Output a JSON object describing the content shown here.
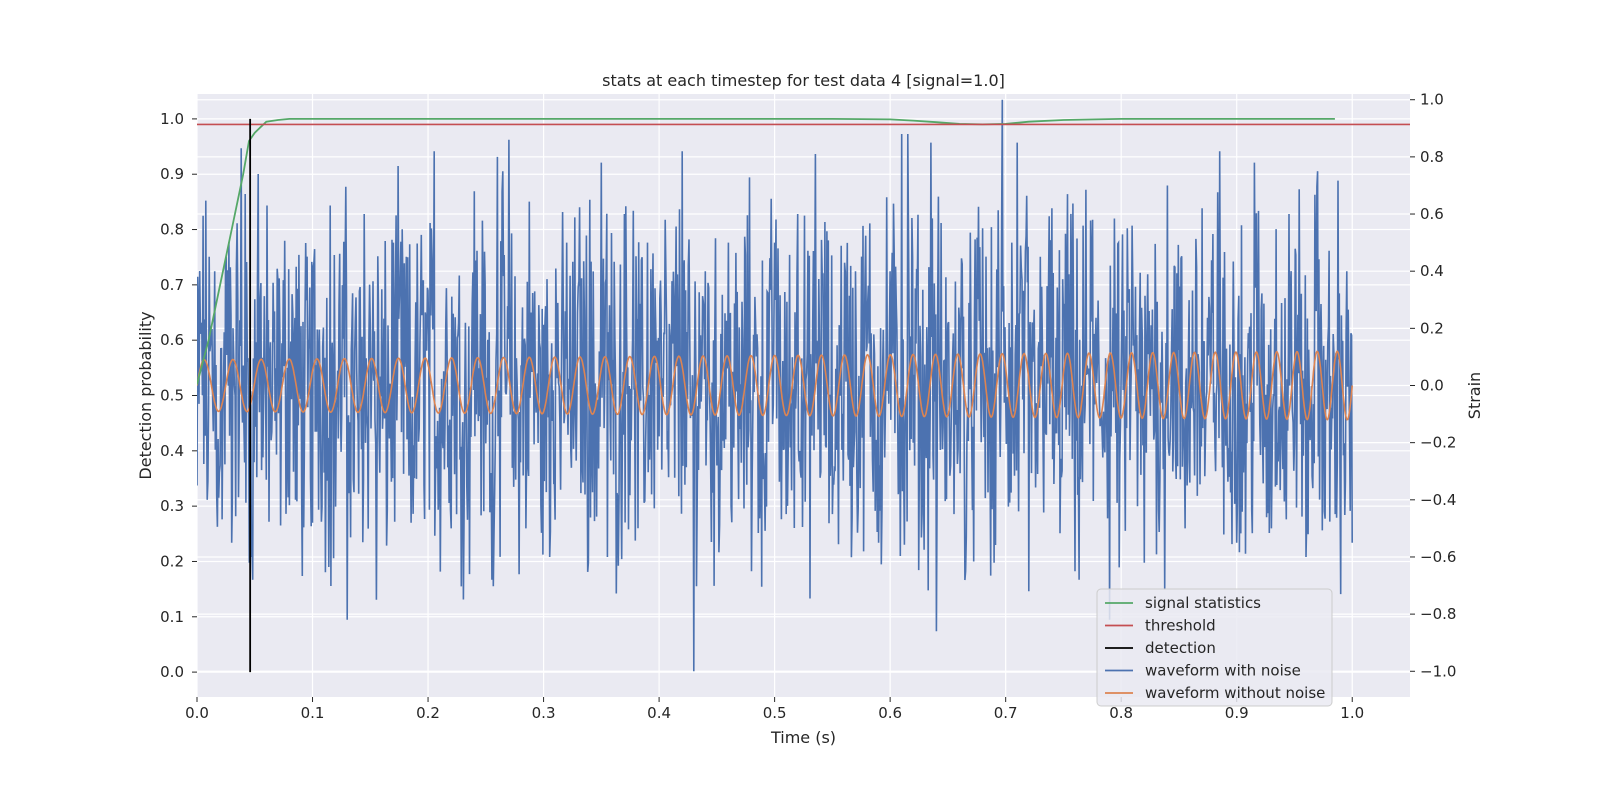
{
  "chart_data": {
    "type": "line",
    "title": "stats at each timestep for test data 4 [signal=1.0]",
    "xlabel": "Time (s)",
    "ylabel": "Detection probability",
    "y2label": "Strain",
    "xlim": [
      0.0,
      1.05
    ],
    "ylim": [
      -0.045,
      1.045
    ],
    "y2lim": [
      -1.09,
      1.02
    ],
    "grid": true,
    "legend_position": "lower-right",
    "xticks": [
      "0.0",
      "0.1",
      "0.2",
      "0.3",
      "0.4",
      "0.5",
      "0.6",
      "0.7",
      "0.8",
      "0.9",
      "1.0"
    ],
    "yticks": [
      "0.0",
      "0.1",
      "0.2",
      "0.3",
      "0.4",
      "0.5",
      "0.6",
      "0.7",
      "0.8",
      "0.9",
      "1.0"
    ],
    "y2ticks": [
      "−1.0",
      "−0.8",
      "−0.6",
      "−0.4",
      "−0.2",
      "0.0",
      "0.2",
      "0.4",
      "0.6",
      "0.8",
      "1.0"
    ],
    "colors": {
      "background": "#eaeaf2",
      "grid": "#ffffff",
      "signal_statistics": "#55a868",
      "threshold": "#c44e52",
      "detection": "#000000",
      "waveform_with_noise": "#4c72b0",
      "waveform_without_noise": "#dd8452"
    },
    "series": [
      {
        "name": "signal statistics",
        "axis": "left",
        "x": [
          0.0,
          0.01,
          0.02,
          0.03,
          0.04,
          0.045,
          0.05,
          0.055,
          0.06,
          0.07,
          0.08,
          0.1,
          0.2,
          0.3,
          0.4,
          0.5,
          0.55,
          0.6,
          0.62,
          0.64,
          0.66,
          0.68,
          0.7,
          0.72,
          0.75,
          0.8,
          0.9,
          0.985
        ],
        "y": [
          0.52,
          0.6,
          0.7,
          0.8,
          0.9,
          0.96,
          0.975,
          0.985,
          0.995,
          0.998,
          1.0,
          1.0,
          1.0,
          1.0,
          1.0,
          1.0,
          1.0,
          0.999,
          0.997,
          0.994,
          0.991,
          0.99,
          0.991,
          0.995,
          0.998,
          1.0,
          1.0,
          1.0
        ]
      },
      {
        "name": "threshold",
        "axis": "left",
        "x": [
          0.0,
          1.05
        ],
        "y": [
          0.99,
          0.99
        ]
      },
      {
        "name": "detection",
        "axis": "left",
        "x": [
          0.046,
          0.046
        ],
        "y": [
          0.0,
          1.0
        ]
      },
      {
        "name": "waveform with noise",
        "axis": "right",
        "note_peaks": [
          {
            "x": 0.0,
            "y": -0.35
          },
          {
            "x": 0.004,
            "y": 0.22
          },
          {
            "x": 0.009,
            "y": -0.4
          },
          {
            "x": 0.015,
            "y": 0.4
          },
          {
            "x": 0.02,
            "y": -0.28
          },
          {
            "x": 0.025,
            "y": 0.45
          },
          {
            "x": 0.03,
            "y": -0.55
          },
          {
            "x": 0.035,
            "y": 0.3
          },
          {
            "x": 0.038,
            "y": 0.83
          },
          {
            "x": 0.042,
            "y": 0.67
          },
          {
            "x": 0.045,
            "y": -0.62
          },
          {
            "x": 0.048,
            "y": -0.68
          },
          {
            "x": 0.053,
            "y": 0.74
          },
          {
            "x": 0.06,
            "y": -0.33
          },
          {
            "x": 0.07,
            "y": 0.37
          },
          {
            "x": 0.085,
            "y": -0.4
          },
          {
            "x": 0.1,
            "y": -0.48
          },
          {
            "x": 0.115,
            "y": 0.63
          },
          {
            "x": 0.13,
            "y": -0.82
          },
          {
            "x": 0.145,
            "y": 0.6
          },
          {
            "x": 0.155,
            "y": -0.75
          },
          {
            "x": 0.17,
            "y": 0.5
          },
          {
            "x": 0.185,
            "y": -0.48
          },
          {
            "x": 0.205,
            "y": 0.82
          },
          {
            "x": 0.22,
            "y": -0.5
          },
          {
            "x": 0.24,
            "y": 0.68
          },
          {
            "x": 0.255,
            "y": -0.68
          },
          {
            "x": 0.26,
            "y": 0.8
          },
          {
            "x": 0.27,
            "y": 0.86
          },
          {
            "x": 0.285,
            "y": -0.5
          },
          {
            "x": 0.305,
            "y": -0.6
          },
          {
            "x": 0.32,
            "y": 0.5
          },
          {
            "x": 0.34,
            "y": 0.65
          },
          {
            "x": 0.35,
            "y": 0.78
          },
          {
            "x": 0.355,
            "y": -0.6
          },
          {
            "x": 0.37,
            "y": 0.6
          },
          {
            "x": 0.39,
            "y": 0.5
          },
          {
            "x": 0.405,
            "y": 0.58
          },
          {
            "x": 0.42,
            "y": 0.82
          },
          {
            "x": 0.43,
            "y": -1.0
          },
          {
            "x": 0.44,
            "y": 0.4
          },
          {
            "x": 0.46,
            "y": 0.5
          },
          {
            "x": 0.48,
            "y": -0.65
          },
          {
            "x": 0.5,
            "y": 0.5
          },
          {
            "x": 0.52,
            "y": 0.6
          },
          {
            "x": 0.535,
            "y": 0.81
          },
          {
            "x": 0.55,
            "y": -0.45
          },
          {
            "x": 0.57,
            "y": 0.4
          },
          {
            "x": 0.59,
            "y": -0.55
          },
          {
            "x": 0.6,
            "y": 0.4
          },
          {
            "x": 0.61,
            "y": 0.88
          },
          {
            "x": 0.615,
            "y": 0.88
          },
          {
            "x": 0.62,
            "y": -0.2
          },
          {
            "x": 0.635,
            "y": 0.85
          },
          {
            "x": 0.64,
            "y": -0.86
          },
          {
            "x": 0.655,
            "y": -0.45
          },
          {
            "x": 0.665,
            "y": -0.65
          },
          {
            "x": 0.68,
            "y": 0.55
          },
          {
            "x": 0.69,
            "y": -0.62
          },
          {
            "x": 0.697,
            "y": 1.0
          },
          {
            "x": 0.705,
            "y": 0.5
          },
          {
            "x": 0.71,
            "y": 0.85
          },
          {
            "x": 0.72,
            "y": -0.72
          },
          {
            "x": 0.74,
            "y": 0.62
          },
          {
            "x": 0.76,
            "y": -0.65
          },
          {
            "x": 0.775,
            "y": 0.58
          },
          {
            "x": 0.79,
            "y": -0.82
          },
          {
            "x": 0.805,
            "y": 0.55
          },
          {
            "x": 0.82,
            "y": -0.62
          },
          {
            "x": 0.84,
            "y": 0.7
          },
          {
            "x": 0.855,
            "y": -0.5
          },
          {
            "x": 0.87,
            "y": 0.62
          },
          {
            "x": 0.885,
            "y": 0.82
          },
          {
            "x": 0.9,
            "y": -0.55
          },
          {
            "x": 0.915,
            "y": 0.78
          },
          {
            "x": 0.93,
            "y": -0.5
          },
          {
            "x": 0.945,
            "y": 0.6
          },
          {
            "x": 0.96,
            "y": -0.6
          },
          {
            "x": 0.97,
            "y": 0.75
          },
          {
            "x": 0.985,
            "y": -0.45
          },
          {
            "x": 0.99,
            "y": -0.73
          },
          {
            "x": 0.995,
            "y": 0.4
          },
          {
            "x": 1.0,
            "y": -0.55
          }
        ]
      },
      {
        "name": "waveform without noise",
        "axis": "right",
        "amplitude_start": 0.09,
        "amplitude_end": 0.12,
        "cycles_in_1s": 58
      }
    ],
    "legend": [
      "signal statistics",
      "threshold",
      "detection",
      "waveform with noise",
      "waveform without noise"
    ]
  }
}
